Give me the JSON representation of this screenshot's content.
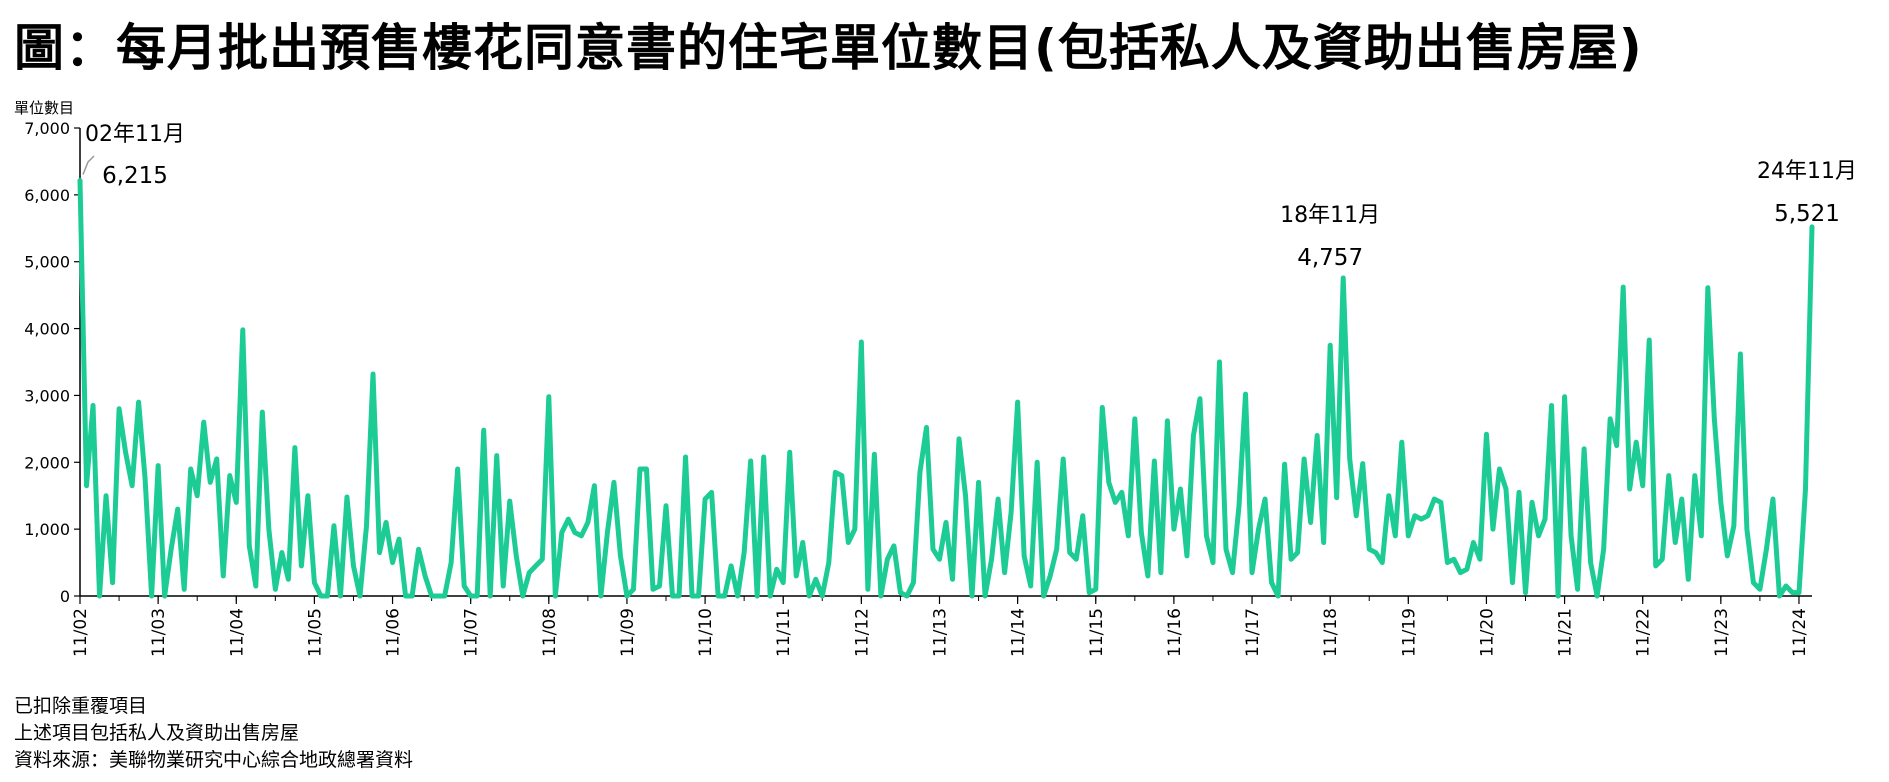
{
  "title": "圖：每月批出預售樓花同意書的住宅單位數目(包括私人及資助出售房屋)",
  "notes": [
    "已扣除重覆項目",
    "上述項目包括私人及資助出售房屋",
    "資料來源：美聯物業研究中心綜合地政總署資料"
  ],
  "colors": {
    "line": "#1DCC95",
    "axis": "#000000",
    "annotation_leader": "#999999"
  },
  "chart_data": {
    "type": "line",
    "ylabel": "單位數目",
    "ylim": [
      0,
      7000
    ],
    "yticks": [
      "0",
      "1,000",
      "2,000",
      "3,000",
      "4,000",
      "5,000",
      "6,000",
      "7,000"
    ],
    "xticks": [
      "11/02",
      "11/03",
      "11/04",
      "11/05",
      "11/06",
      "11/07",
      "11/08",
      "11/09",
      "11/10",
      "11/11",
      "11/12",
      "11/13",
      "11/14",
      "11/15",
      "11/16",
      "11/17",
      "11/18",
      "11/19",
      "11/20",
      "11/21",
      "11/22",
      "11/23",
      "11/24"
    ],
    "grid": false,
    "series": [
      {
        "values": [
          6215,
          1650,
          2850,
          0,
          1500,
          200,
          2800,
          2150,
          1650,
          2900,
          1750,
          0,
          1950,
          0,
          700,
          1300,
          100,
          1900,
          1500,
          2600,
          1700,
          2050,
          300,
          1800,
          1400,
          3980,
          750,
          150,
          2750,
          1000,
          100,
          650,
          250,
          2220,
          450,
          1500,
          200,
          0,
          0,
          1050,
          0,
          1480,
          450,
          0,
          1050,
          3320,
          650,
          1100,
          500,
          850,
          0,
          0,
          700,
          300,
          0,
          0,
          0,
          500,
          1900,
          150,
          0,
          0,
          2480,
          0,
          2100,
          150,
          1420,
          600,
          0,
          350,
          450,
          550,
          2980,
          0,
          950,
          1150,
          950,
          900,
          1100,
          1650,
          0,
          950,
          1700,
          600,
          0,
          100,
          1900,
          1900,
          100,
          150,
          1350,
          0,
          0,
          2080,
          0,
          0,
          1450,
          1550,
          0,
          0,
          450,
          0,
          650,
          2020,
          0,
          2080,
          0,
          400,
          200,
          2150,
          300,
          800,
          0,
          250,
          0,
          500,
          1850,
          1800,
          800,
          1000,
          3800,
          100,
          2120,
          0,
          550,
          750,
          50,
          0,
          200,
          1850,
          2520,
          700,
          550,
          1100,
          250,
          2350,
          1500,
          0,
          1700,
          0,
          550,
          1450,
          350,
          1250,
          2900,
          600,
          150,
          2000,
          0,
          300,
          700,
          2050,
          650,
          550,
          1200,
          50,
          100,
          2820,
          1700,
          1400,
          1550,
          900,
          2650,
          950,
          300,
          2020,
          350,
          2620,
          1000,
          1600,
          600,
          2400,
          2950,
          900,
          500,
          3500,
          700,
          350,
          1350,
          3020,
          350,
          1000,
          1450,
          200,
          0,
          1970,
          550,
          650,
          2050,
          1100,
          2400,
          800,
          3750,
          1470,
          4757,
          2050,
          1200,
          1980,
          700,
          650,
          500,
          1500,
          900,
          2300,
          900,
          1200,
          1150,
          1200,
          1450,
          1400,
          500,
          550,
          350,
          400,
          800,
          550,
          2420,
          1000,
          1900,
          1600,
          200,
          1550,
          50,
          1400,
          900,
          1150,
          2850,
          0,
          2980,
          900,
          100,
          2200,
          500,
          0,
          700,
          2650,
          2250,
          4620,
          1600,
          2300,
          1650,
          3830,
          450,
          550,
          1800,
          800,
          1450,
          250,
          1800,
          900,
          4610,
          2650,
          1400,
          600,
          1050,
          3620,
          1000,
          200,
          100,
          700,
          1450,
          0,
          150,
          50,
          50,
          1600,
          5521
        ]
      }
    ],
    "annotations": [
      {
        "label": "02年11月",
        "value": "6,215"
      },
      {
        "label": "18年11月",
        "value": "4,757"
      },
      {
        "label": "24年11月",
        "value": "5,521"
      }
    ]
  }
}
